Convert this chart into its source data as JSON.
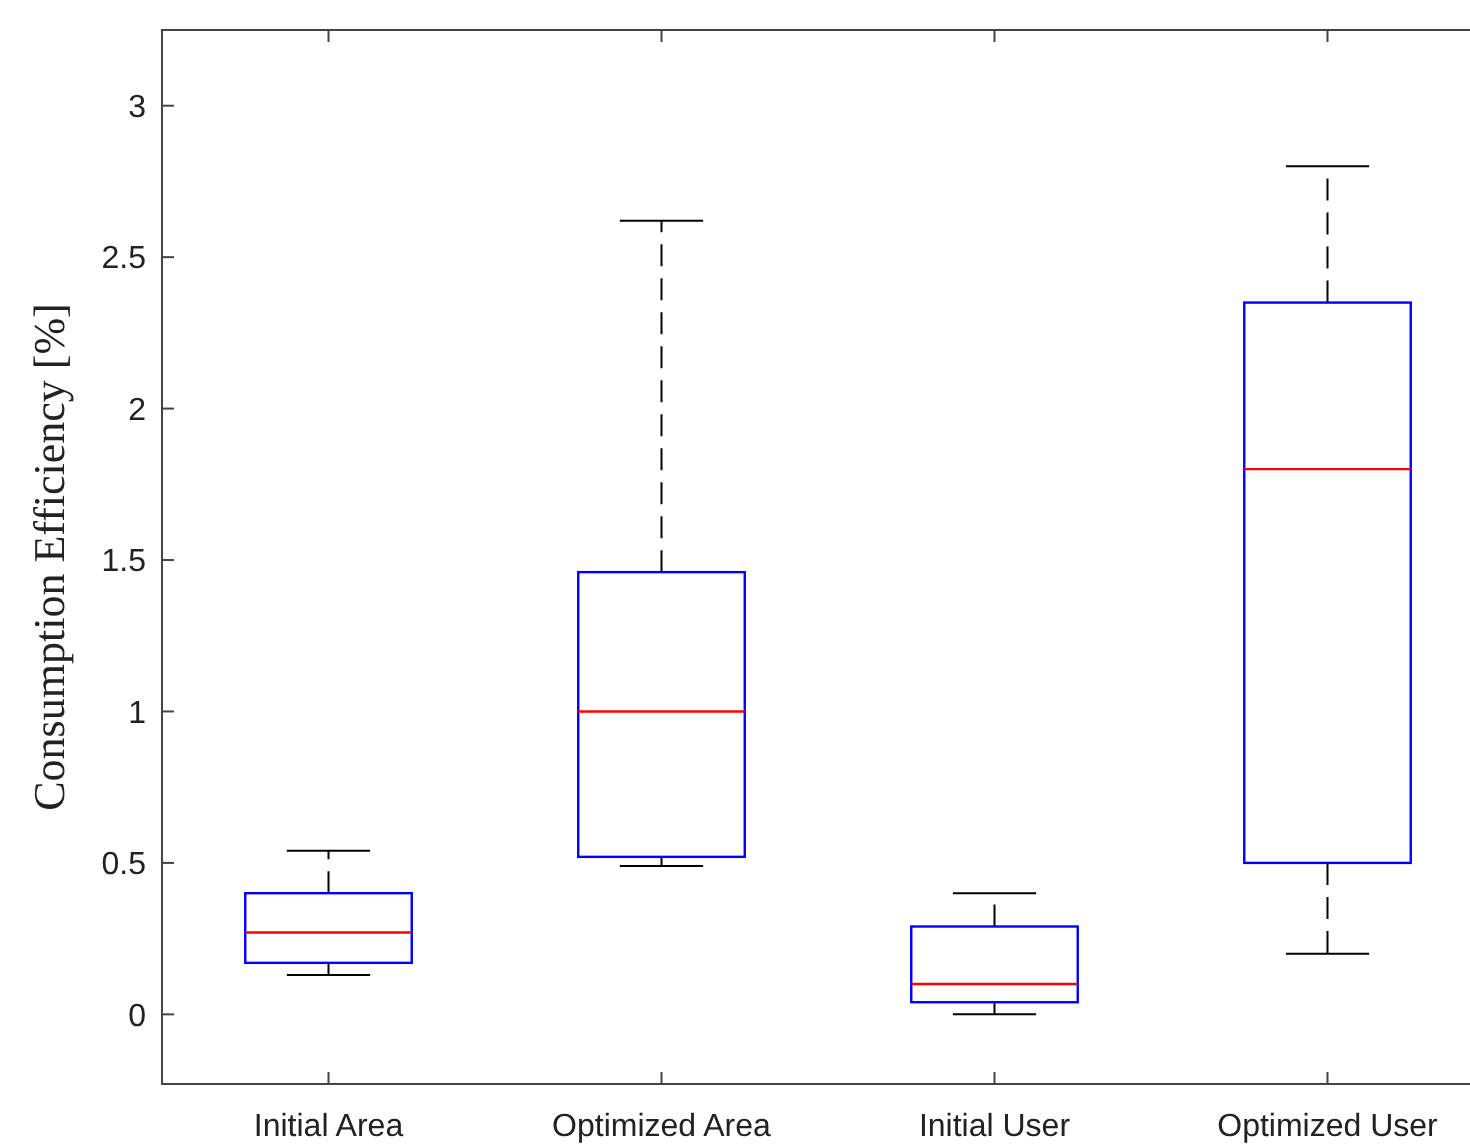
{
  "chart_data": {
    "type": "box",
    "ylabel": "Consumption Efficiency [%]",
    "categories": [
      "Initial Area",
      "Optimized Area",
      "Initial User",
      "Optimized User"
    ],
    "ylim": [
      -0.23,
      3.25
    ],
    "yticks": [
      0,
      0.5,
      1,
      1.5,
      2,
      2.5,
      3
    ],
    "line_style": "dashed",
    "grid": false,
    "series": [
      {
        "color": "#0000ff",
        "boxes": [
          {
            "low": 0.13,
            "q1": 0.17,
            "median": 0.27,
            "q3": 0.4,
            "high": 0.54
          },
          {
            "low": 0.49,
            "q1": 0.52,
            "median": 1.0,
            "q3": 1.46,
            "high": 2.62
          },
          {
            "low": 0.0,
            "q1": 0.04,
            "median": 0.1,
            "q3": 0.29,
            "high": 0.4
          },
          {
            "low": 0.2,
            "q1": 0.5,
            "median": 1.8,
            "q3": 2.35,
            "high": 2.8
          }
        ]
      }
    ]
  }
}
